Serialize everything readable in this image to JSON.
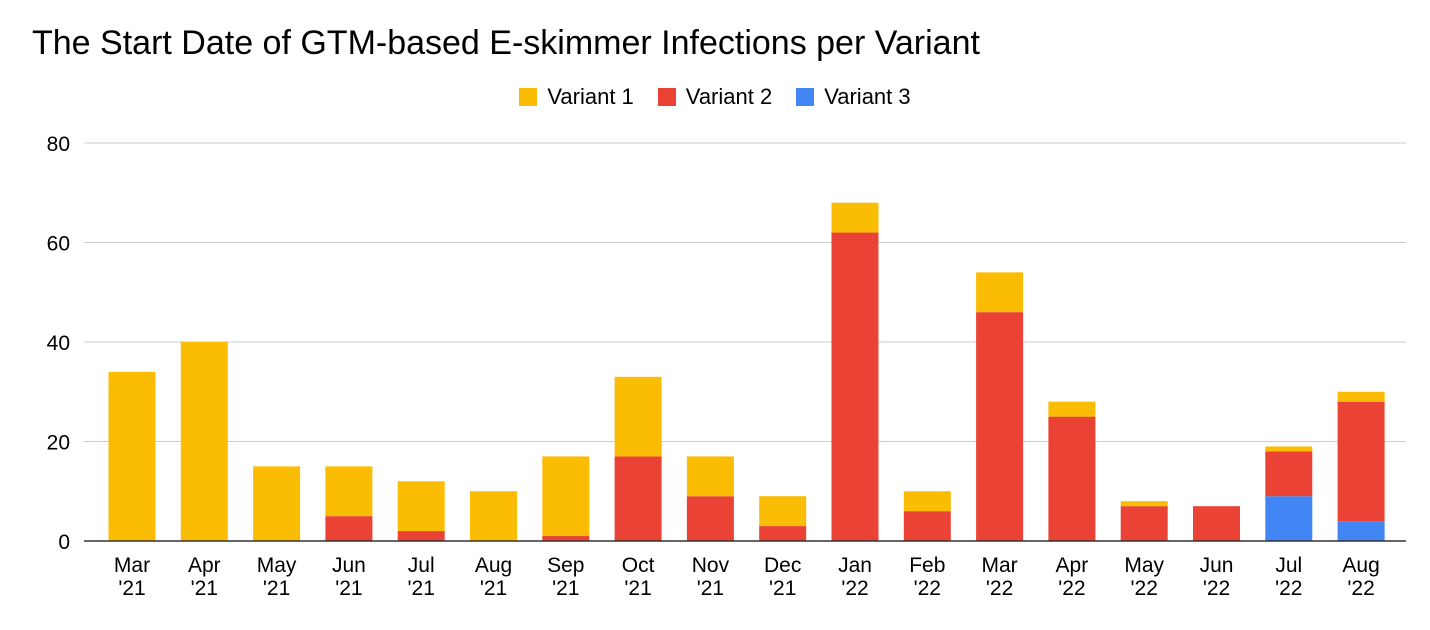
{
  "chart_data": {
    "type": "bar",
    "stacked": true,
    "title": "The Start Date of GTM-based E-skimmer Infections per Variant",
    "xlabel": "",
    "ylabel": "",
    "ylim": [
      0,
      80
    ],
    "yticks": [
      0,
      20,
      40,
      60,
      80
    ],
    "grid": true,
    "legend_position": "top",
    "categories": [
      [
        "Mar",
        "'21"
      ],
      [
        "Apr",
        "'21"
      ],
      [
        "May",
        "'21"
      ],
      [
        "Jun",
        "'21"
      ],
      [
        "Jul",
        "'21"
      ],
      [
        "Aug",
        "'21"
      ],
      [
        "Sep",
        "'21"
      ],
      [
        "Oct",
        "'21"
      ],
      [
        "Nov",
        "'21"
      ],
      [
        "Dec",
        "'21"
      ],
      [
        "Jan",
        "'22"
      ],
      [
        "Feb",
        "'22"
      ],
      [
        "Mar",
        "'22"
      ],
      [
        "Apr",
        "'22"
      ],
      [
        "May",
        "'22"
      ],
      [
        "Jun",
        "'22"
      ],
      [
        "Jul",
        "'22"
      ],
      [
        "Aug",
        "'22"
      ]
    ],
    "series": [
      {
        "name": "Variant 3",
        "color": "#4285f4",
        "values": [
          0,
          0,
          0,
          0,
          0,
          0,
          0,
          0,
          0,
          0,
          0,
          0,
          0,
          0,
          0,
          0,
          9,
          4
        ]
      },
      {
        "name": "Variant 2",
        "color": "#ea4335",
        "values": [
          0,
          0,
          0,
          5,
          2,
          0,
          1,
          17,
          9,
          3,
          62,
          6,
          46,
          25,
          7,
          7,
          9,
          24
        ]
      },
      {
        "name": "Variant 1",
        "color": "#fbbc04",
        "values": [
          34,
          40,
          15,
          10,
          10,
          10,
          16,
          16,
          8,
          6,
          6,
          4,
          8,
          3,
          1,
          0,
          1,
          2
        ]
      }
    ],
    "legend_order": [
      "Variant 1",
      "Variant 2",
      "Variant 3"
    ]
  }
}
